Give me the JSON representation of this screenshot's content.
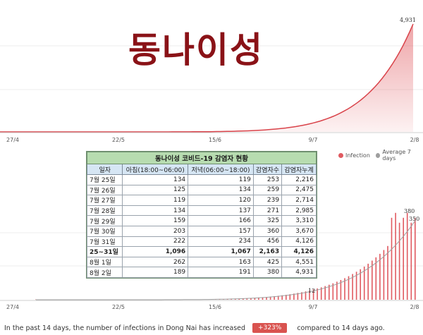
{
  "overlay_title": "동나이성",
  "legend": [
    {
      "label": "Infection",
      "color": "#e05a60"
    },
    {
      "label": "Average 7 days",
      "color": "#9e9e9e"
    }
  ],
  "chart_data": [
    {
      "type": "area",
      "x_ticks": [
        "27/4",
        "22/5",
        "15/6",
        "9/7",
        "2/8"
      ],
      "peak_label": "4,931",
      "peak_value": 4931,
      "color": "#e05a60"
    },
    {
      "type": "bar",
      "x_ticks": [
        "27/4",
        "22/5",
        "15/6",
        "9/7",
        "2/8"
      ],
      "annotations": [
        "380",
        "350",
        "12"
      ],
      "bar_color": "#e05a60",
      "avg_color": "#9e9e9e"
    }
  ],
  "table": {
    "title": "동나이성 코비드-19 감염자 현황",
    "headers": [
      "일자",
      "아침(18:00~06:00)",
      "저녁(06:00~18:00)",
      "감염자수",
      "감염자누계"
    ],
    "rows": [
      [
        "7월 25일",
        "134",
        "119",
        "253",
        "2,216"
      ],
      [
        "7월 26일",
        "125",
        "134",
        "259",
        "2,475"
      ],
      [
        "7월 27일",
        "119",
        "120",
        "239",
        "2,714"
      ],
      [
        "7월 28일",
        "134",
        "137",
        "271",
        "2,985"
      ],
      [
        "7월 29일",
        "159",
        "166",
        "325",
        "3,310"
      ],
      [
        "7월 30일",
        "203",
        "157",
        "360",
        "3,670"
      ],
      [
        "7월 31일",
        "222",
        "234",
        "456",
        "4,126"
      ],
      [
        "25~31일",
        "1,096",
        "1,067",
        "2,163",
        "4,126"
      ],
      [
        "8월 1일",
        "262",
        "163",
        "425",
        "4,551"
      ],
      [
        "8월 2일",
        "189",
        "191",
        "380",
        "4,931"
      ]
    ]
  },
  "footer": {
    "text_before": "In the past 14 days, the number of infections in Dong Nai has increased",
    "badge": "+323%",
    "text_after": "compared to 14 days ago."
  }
}
